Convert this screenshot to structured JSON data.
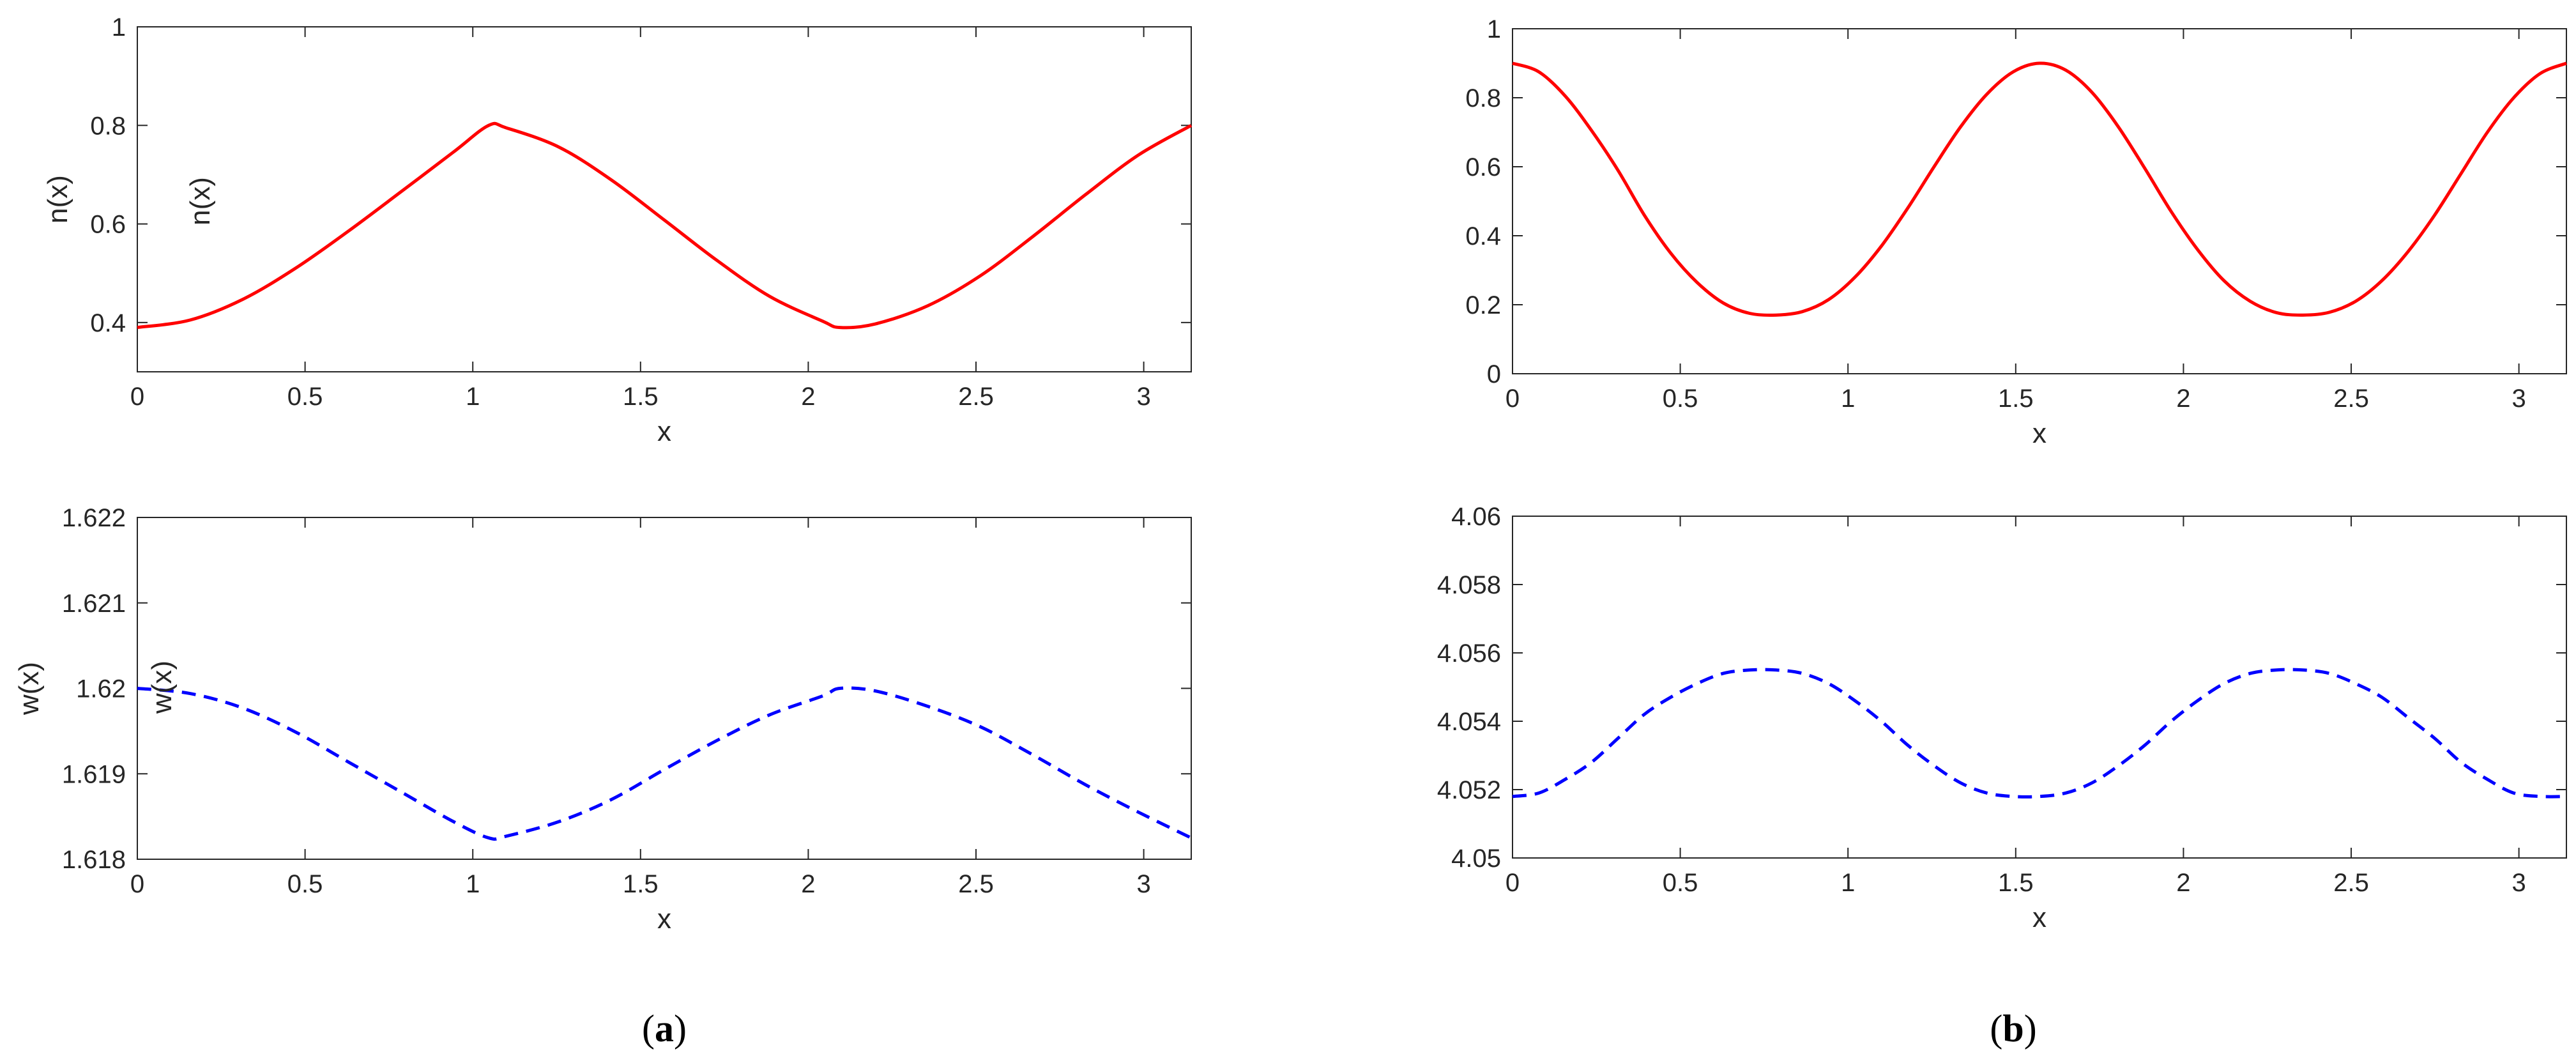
{
  "chart_data": [
    {
      "type": "line",
      "panel": "a",
      "position": "top",
      "xlabel": "x",
      "ylabel": "n(x)",
      "xlim": [
        0,
        3.1416
      ],
      "ylim": [
        0.3,
        1
      ],
      "xticks": [
        "0",
        "0.5",
        "1",
        "1.5",
        "2",
        "2.5",
        "3"
      ],
      "yticks": [
        "0.4",
        "0.6",
        "0.8",
        "1"
      ],
      "series": [
        {
          "line_style": "solid",
          "color": "#ff0000",
          "x": [
            0,
            0.1571,
            0.3142,
            0.4712,
            0.6283,
            0.7854,
            0.9425,
            1.0472,
            1.0996,
            1.2566,
            1.4137,
            1.5708,
            1.7279,
            1.885,
            2.042,
            2.0944,
            2.1991,
            2.3562,
            2.5133,
            2.6704,
            2.8274,
            2.9845,
            3.1416
          ],
          "y": [
            0.39,
            0.405,
            0.447,
            0.51,
            0.585,
            0.665,
            0.746,
            0.8,
            0.795,
            0.756,
            0.689,
            0.608,
            0.526,
            0.453,
            0.403,
            0.39,
            0.397,
            0.434,
            0.495,
            0.575,
            0.66,
            0.74,
            0.8
          ]
        }
      ]
    },
    {
      "type": "line",
      "panel": "a",
      "position": "bottom",
      "xlabel": "x",
      "ylabel": "w(x)",
      "xlim": [
        0,
        3.1416
      ],
      "ylim": [
        1.618,
        1.622
      ],
      "xticks": [
        "0",
        "0.5",
        "1",
        "1.5",
        "2",
        "2.5",
        "3"
      ],
      "yticks": [
        "1.618",
        "1.619",
        "1.62",
        "1.621",
        "1.622"
      ],
      "series": [
        {
          "line_style": "dashed",
          "color": "#0000ff",
          "x": [
            0,
            0.1571,
            0.3142,
            0.4712,
            0.6283,
            0.7854,
            0.9425,
            1.0472,
            1.0996,
            1.2566,
            1.4137,
            1.5708,
            1.7279,
            1.885,
            2.042,
            2.0944,
            2.1991,
            2.3562,
            2.5133,
            2.6704,
            2.8274,
            2.9845,
            3.1416
          ],
          "y": [
            1.62,
            1.61994,
            1.61977,
            1.61949,
            1.61914,
            1.61879,
            1.61844,
            1.61825,
            1.61827,
            1.61844,
            1.6187,
            1.61905,
            1.61939,
            1.61969,
            1.61991,
            1.62,
            1.61997,
            1.61979,
            1.61955,
            1.61922,
            1.61887,
            1.61855,
            1.61825
          ]
        }
      ]
    },
    {
      "type": "line",
      "panel": "b",
      "position": "top",
      "xlabel": "x",
      "ylabel": "n(x)",
      "xlim": [
        0,
        3.1416
      ],
      "ylim": [
        0,
        1
      ],
      "xticks": [
        "0",
        "0.5",
        "1",
        "1.5",
        "2",
        "2.5",
        "3"
      ],
      "yticks": [
        "0",
        "0.2",
        "0.4",
        "0.6",
        "0.8",
        "1"
      ],
      "series": [
        {
          "line_style": "solid",
          "color": "#ff0000",
          "x": [
            0,
            0.0785,
            0.1571,
            0.2356,
            0.3142,
            0.3927,
            0.4712,
            0.5498,
            0.6283,
            0.7069,
            0.7854,
            0.8639,
            0.9425,
            1.021,
            1.0996,
            1.1781,
            1.2566,
            1.3352,
            1.4137,
            1.4923,
            1.5708,
            1.6493,
            1.7279,
            1.8064,
            1.885,
            1.9635,
            2.042,
            2.1206,
            2.1991,
            2.2777,
            2.3562,
            2.4347,
            2.5133,
            2.5918,
            2.6704,
            2.7489,
            2.8274,
            2.906,
            2.9845,
            3.0631,
            3.1416
          ],
          "y": [
            0.9,
            0.875,
            0.805,
            0.705,
            0.59,
            0.46,
            0.35,
            0.265,
            0.205,
            0.175,
            0.17,
            0.18,
            0.215,
            0.28,
            0.37,
            0.48,
            0.6,
            0.715,
            0.81,
            0.875,
            0.9,
            0.88,
            0.815,
            0.715,
            0.595,
            0.47,
            0.36,
            0.27,
            0.21,
            0.177,
            0.17,
            0.178,
            0.21,
            0.27,
            0.355,
            0.46,
            0.58,
            0.7,
            0.8,
            0.87,
            0.9
          ]
        }
      ]
    },
    {
      "type": "line",
      "panel": "b",
      "position": "bottom",
      "xlabel": "x",
      "ylabel": "w(x)",
      "xlim": [
        0,
        3.1416
      ],
      "ylim": [
        4.05,
        4.06
      ],
      "xticks": [
        "0",
        "0.5",
        "1",
        "1.5",
        "2",
        "2.5",
        "3"
      ],
      "yticks": [
        "4.05",
        "4.052",
        "4.054",
        "4.056",
        "4.058",
        "4.06"
      ],
      "series": [
        {
          "line_style": "dashed",
          "color": "#0000ff",
          "x": [
            0,
            0.0785,
            0.1571,
            0.2356,
            0.3142,
            0.3927,
            0.4712,
            0.5498,
            0.6283,
            0.7069,
            0.7854,
            0.8639,
            0.9425,
            1.021,
            1.0996,
            1.1781,
            1.2566,
            1.3352,
            1.4137,
            1.4923,
            1.5708,
            1.6493,
            1.7279,
            1.8064,
            1.885,
            1.9635,
            2.042,
            2.1206,
            2.1991,
            2.2777,
            2.3562,
            2.4347,
            2.5133,
            2.5918,
            2.6704,
            2.7489,
            2.8274,
            2.906,
            2.9845,
            3.0631,
            3.1416
          ],
          "y": [
            4.0518,
            4.0519,
            4.0523,
            4.0528,
            4.0535,
            4.0542,
            4.0547,
            4.0551,
            4.0554,
            4.0555,
            4.0555,
            4.0554,
            4.0551,
            4.0546,
            4.054,
            4.0533,
            4.0527,
            4.0522,
            4.0519,
            4.0518,
            4.0518,
            4.0519,
            4.0522,
            4.0527,
            4.0533,
            4.054,
            4.0546,
            4.0551,
            4.0554,
            4.0555,
            4.0555,
            4.0554,
            4.0551,
            4.0547,
            4.0541,
            4.0535,
            4.0528,
            4.0523,
            4.0519,
            4.0518,
            4.0518
          ]
        }
      ]
    }
  ],
  "captions": {
    "a": {
      "open": "(",
      "letter": "a",
      "close": ")"
    },
    "b": {
      "open": "(",
      "letter": "b",
      "close": ")"
    }
  },
  "colors": {
    "axis": "#262626",
    "grid_box": "#262626",
    "n_curve": "#ff0000",
    "w_curve": "#0000ff"
  }
}
